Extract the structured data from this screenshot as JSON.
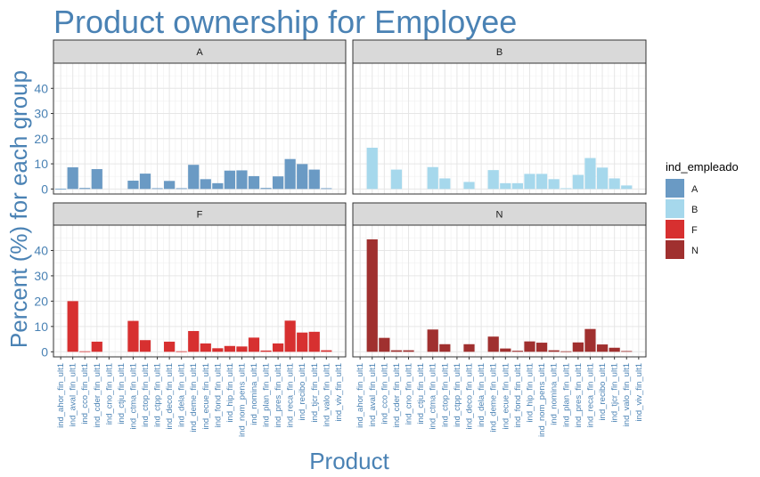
{
  "chart_data": {
    "type": "bar",
    "title": "Product ownership for Employee",
    "xlabel": "Product",
    "ylabel": "Percent (%) for each group",
    "ylim": [
      -2,
      50
    ],
    "yticks": [
      0,
      10,
      20,
      30,
      40
    ],
    "grid": true,
    "legend": {
      "title": "ind_empleado",
      "position": "right",
      "entries": [
        "A",
        "B",
        "F",
        "N"
      ]
    },
    "categories": [
      "ind_ahor_fin_ult1",
      "ind_aval_fin_ult1",
      "ind_cco_fin_ult1",
      "ind_cder_fin_ult1",
      "ind_cno_fin_ult1",
      "ind_ctju_fin_ult1",
      "ind_ctma_fin_ult1",
      "ind_ctop_fin_ult1",
      "ind_ctpp_fin_ult1",
      "ind_deco_fin_ult1",
      "ind_dela_fin_ult1",
      "ind_deme_fin_ult1",
      "ind_ecue_fin_ult1",
      "ind_fond_fin_ult1",
      "ind_hip_fin_ult1",
      "ind_nom_pens_ult1",
      "ind_nomina_ult1",
      "ind_plan_fin_ult1",
      "ind_pres_fin_ult1",
      "ind_reca_fin_ult1",
      "ind_recibo_ult1",
      "ind_tjcr_fin_ult1",
      "ind_valo_fin_ult1",
      "ind_viv_fin_ult1"
    ],
    "series": [
      {
        "name": "A",
        "color": "#6A9AC4",
        "values": [
          0.1,
          8.6,
          0.4,
          7.9,
          0,
          0,
          3.3,
          6.1,
          0.3,
          3.2,
          0.3,
          9.6,
          3.9,
          2.3,
          7.3,
          7.4,
          5.1,
          0.4,
          5.0,
          11.9,
          9.9,
          7.7,
          0.3,
          0
        ]
      },
      {
        "name": "B",
        "color": "#A6D8EC",
        "values": [
          0,
          16.4,
          0,
          7.7,
          0,
          0,
          8.7,
          4.2,
          0,
          2.8,
          0,
          7.5,
          2.3,
          2.3,
          6.0,
          6.0,
          3.9,
          0.3,
          5.6,
          12.3,
          8.5,
          4.2,
          1.4,
          0
        ]
      },
      {
        "name": "F",
        "color": "#D73030",
        "values": [
          0,
          20.0,
          0.2,
          4.0,
          0,
          0,
          12.2,
          4.6,
          0,
          4.0,
          0.2,
          8.2,
          3.3,
          1.4,
          2.3,
          2.1,
          5.6,
          0.5,
          3.3,
          12.3,
          7.6,
          7.9,
          0.6,
          0
        ]
      },
      {
        "name": "N",
        "color": "#A0302F",
        "values": [
          0,
          44.4,
          5.5,
          0.6,
          0.6,
          0,
          8.8,
          3.0,
          0,
          3.0,
          0,
          6.0,
          1.3,
          0.4,
          4.1,
          3.6,
          0.6,
          0.2,
          3.7,
          9.0,
          2.9,
          1.6,
          0.3,
          0
        ]
      }
    ]
  }
}
